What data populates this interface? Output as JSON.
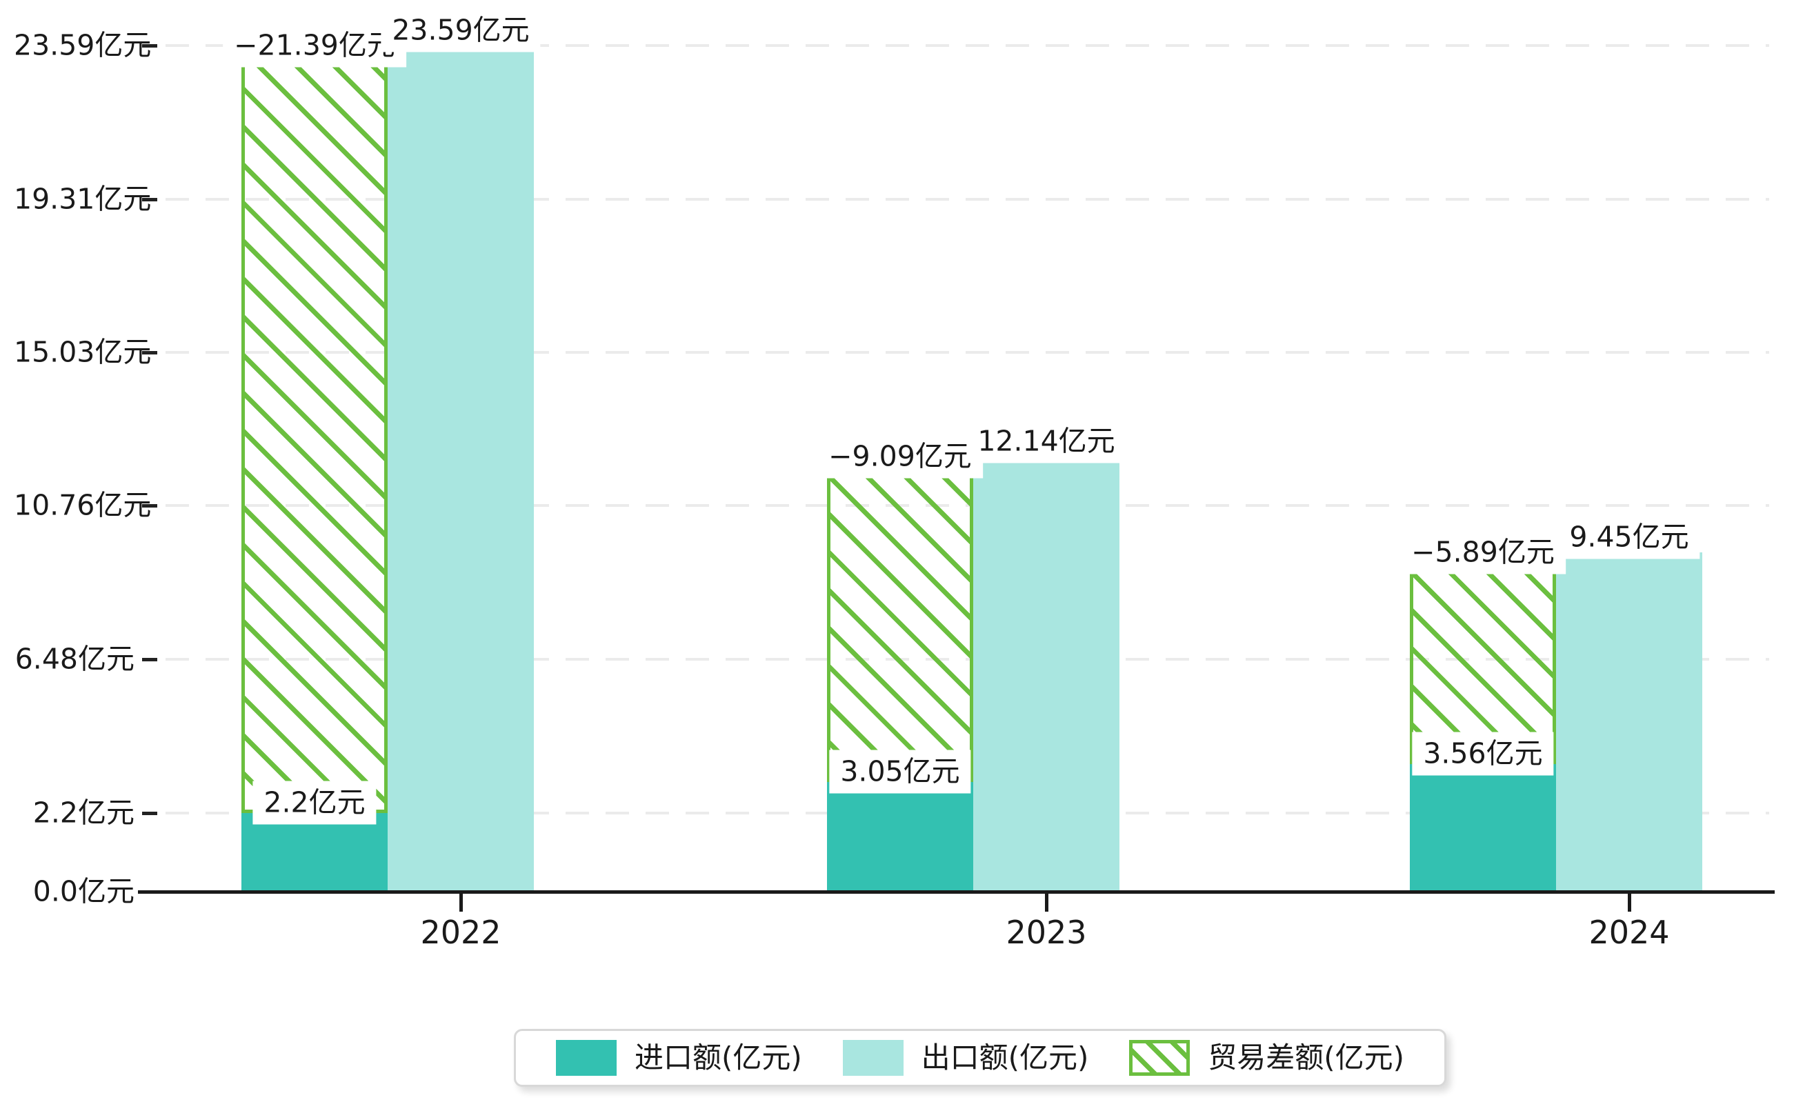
{
  "chart_data": {
    "type": "bar",
    "categories": [
      "2022",
      "2023",
      "2024"
    ],
    "series": [
      {
        "name": "进口额(亿元)",
        "role": "import",
        "style": "solid",
        "color": "#33c1b1",
        "values": [
          2.2,
          3.05,
          3.56
        ],
        "labels": [
          "2.2亿元",
          "3.05亿元",
          "3.56亿元"
        ]
      },
      {
        "name": "出口额(亿元)",
        "role": "export",
        "style": "solid",
        "color": "#a9e6e0",
        "values": [
          23.59,
          12.14,
          9.45
        ],
        "labels": [
          "23.59亿元",
          "12.14亿元",
          "9.45亿元"
        ]
      },
      {
        "name": "贸易差额(亿元)",
        "role": "balance",
        "style": "hatch",
        "color": "#6bbf3f",
        "values": [
          -21.39,
          -9.09,
          -5.89
        ],
        "labels": [
          "−21.39亿元",
          "−9.09亿元",
          "−5.89亿元"
        ]
      }
    ],
    "y_ticks": [
      {
        "label": "23.59亿元",
        "value": 23.59
      },
      {
        "label": "19.31亿元",
        "value": 19.31
      },
      {
        "label": "15.03亿元",
        "value": 15.03
      },
      {
        "label": "10.76亿元",
        "value": 10.76
      },
      {
        "label": "6.48亿元",
        "value": 6.48
      },
      {
        "label": "2.2亿元",
        "value": 2.2
      },
      {
        "label": "0.0亿元",
        "value": 0.0
      }
    ],
    "ylim": [
      0,
      23.59
    ],
    "xlabel": "",
    "ylabel": "",
    "title": "",
    "grid": "horizontal-dashed",
    "legend_position": "bottom",
    "colors": {
      "axis": "#1a1a1a",
      "gridline": "#ebebeb",
      "label_text": "#1a1a1a",
      "label_bg": "#ffffff"
    }
  },
  "legend": {
    "items": [
      {
        "label": "进口额(亿元)"
      },
      {
        "label": "出口额(亿元)"
      },
      {
        "label": "贸易差额(亿元)"
      }
    ]
  }
}
